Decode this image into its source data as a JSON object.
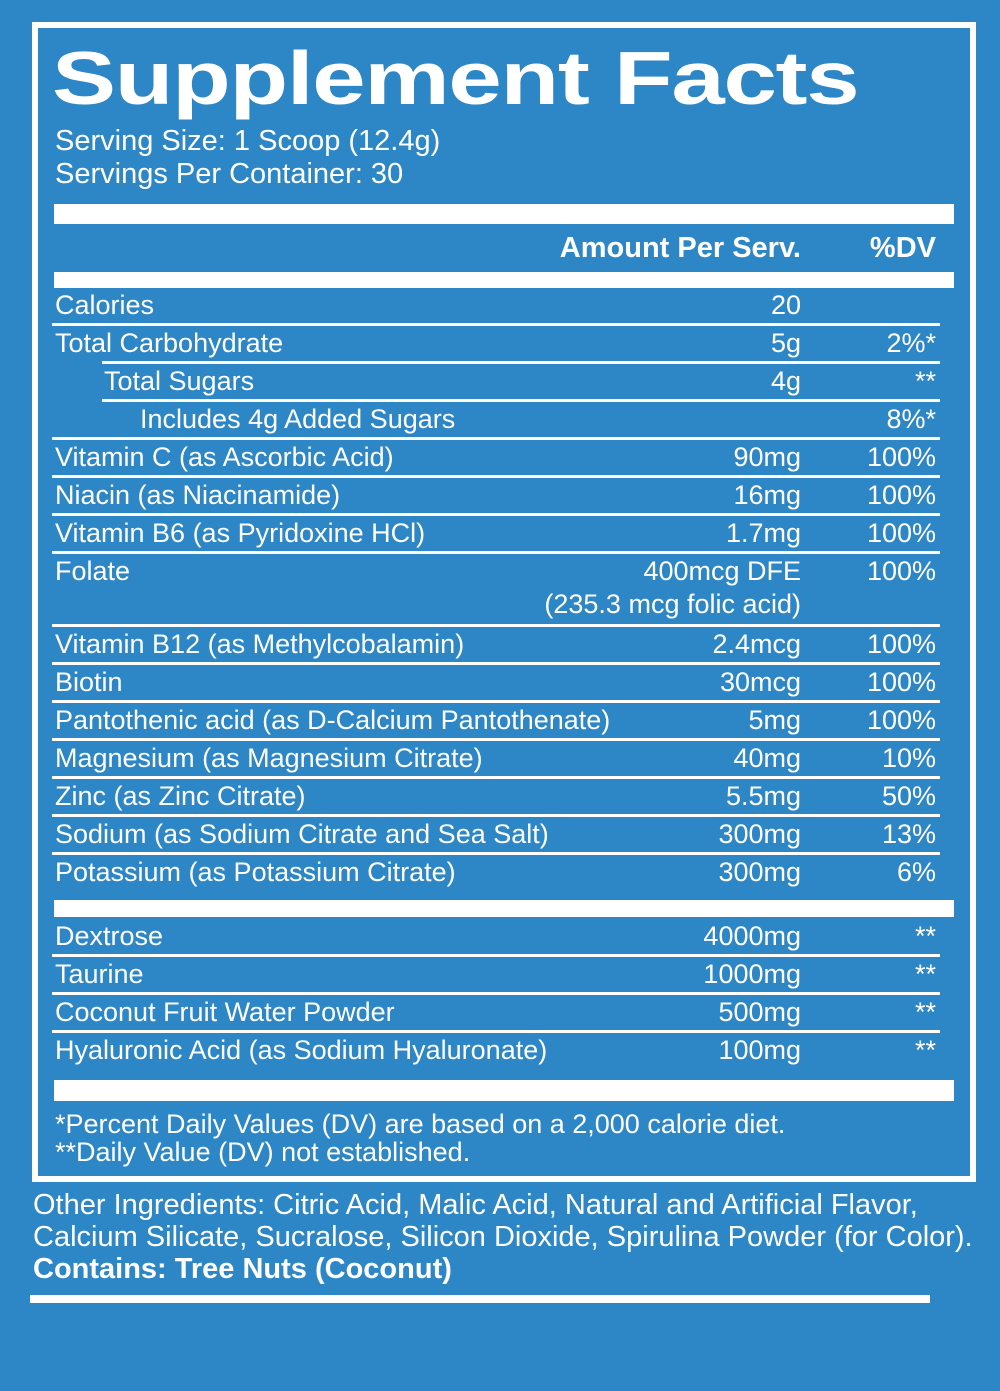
{
  "colors": {
    "background": "#2d86c5",
    "text": "#ffffff",
    "divider": "#ffffff"
  },
  "title": "Supplement Facts",
  "serving": {
    "size_label": "Serving Size: 1 Scoop (12.4g)",
    "per_container": "Servings Per Container: 30"
  },
  "table": {
    "amount_header": "Amount Per Serv.",
    "dv_header": "%DV",
    "rows": [
      {
        "label": "Calories",
        "amount": "20",
        "dv": "",
        "indent": 0,
        "sep_indent": 0
      },
      {
        "label": "Total Carbohydrate",
        "amount": "5g",
        "dv": "2%*",
        "indent": 0,
        "sep_indent": 1
      },
      {
        "label": "Total Sugars",
        "amount": "4g",
        "dv": "**",
        "indent": 1,
        "sep_indent": 1
      },
      {
        "label": "Includes 4g Added Sugars",
        "amount": "",
        "dv": "8%*",
        "indent": 2,
        "sep_indent": 0
      },
      {
        "label": "Vitamin C (as Ascorbic Acid)",
        "amount": "90mg",
        "dv": "100%",
        "indent": 0,
        "sep_indent": 0
      },
      {
        "label": "Niacin (as Niacinamide)",
        "amount": "16mg",
        "dv": "100%",
        "indent": 0,
        "sep_indent": 0
      },
      {
        "label": "Vitamin B6 (as Pyridoxine HCl)",
        "amount": "1.7mg",
        "dv": "100%",
        "indent": 0,
        "sep_indent": 0
      },
      {
        "label": "Folate",
        "amount": "400mcg DFE",
        "dv": "100%",
        "indent": 0,
        "sep_indent": 0,
        "subline": "(235.3 mcg folic acid)"
      },
      {
        "label": "Vitamin B12 (as Methylcobalamin)",
        "amount": "2.4mcg",
        "dv": "100%",
        "indent": 0,
        "sep_indent": 0
      },
      {
        "label": "Biotin",
        "amount": "30mcg",
        "dv": "100%",
        "indent": 0,
        "sep_indent": 0
      },
      {
        "label": "Pantothenic acid (as D-Calcium Pantothenate)",
        "amount": "5mg",
        "dv": "100%",
        "indent": 0,
        "sep_indent": 0
      },
      {
        "label": "Magnesium (as Magnesium Citrate)",
        "amount": "40mg",
        "dv": "10%",
        "indent": 0,
        "sep_indent": 0
      },
      {
        "label": "Zinc (as Zinc Citrate)",
        "amount": "5.5mg",
        "dv": "50%",
        "indent": 0,
        "sep_indent": 0
      },
      {
        "label": "Sodium (as Sodium Citrate and Sea Salt)",
        "amount": "300mg",
        "dv": "13%",
        "indent": 0,
        "sep_indent": 0
      },
      {
        "label": "Potassium (as Potassium Citrate)",
        "amount": "300mg",
        "dv": "6%",
        "indent": 0,
        "sep_indent": 0,
        "last": true
      }
    ],
    "rows2": [
      {
        "label": "Dextrose",
        "amount": "4000mg",
        "dv": "**"
      },
      {
        "label": "Taurine",
        "amount": "1000mg",
        "dv": "**"
      },
      {
        "label": "Coconut Fruit Water Powder",
        "amount": "500mg",
        "dv": "**"
      },
      {
        "label": "Hyaluronic Acid (as Sodium Hyaluronate)",
        "amount": "100mg",
        "dv": "**",
        "last": true
      }
    ]
  },
  "footnotes": [
    "*Percent Daily Values (DV) are based on a 2,000 calorie diet.",
    "**Daily Value (DV) not established."
  ],
  "other_ingredients": {
    "lines": [
      "Other Ingredients: Citric Acid, Malic Acid, Natural and Artificial Flavor,",
      "Calcium Silicate, Sucralose, Silicon Dioxide, Spirulina Powder (for Color)."
    ],
    "contains": "Contains: Tree Nuts (Coconut)"
  }
}
